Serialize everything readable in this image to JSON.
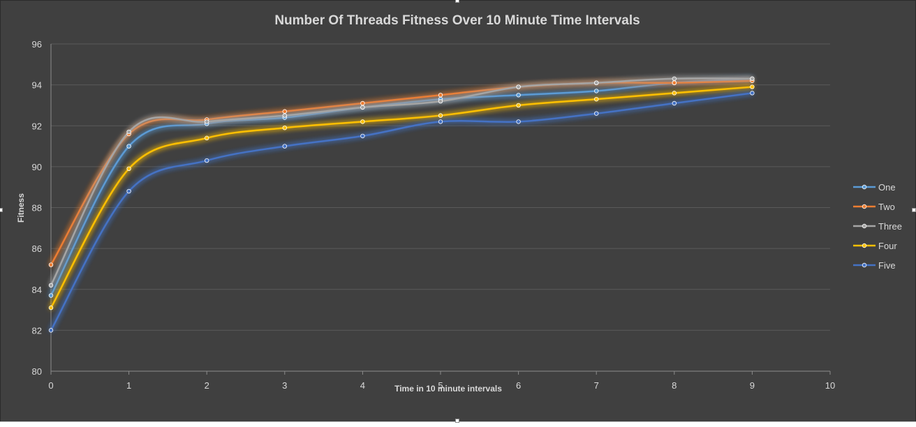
{
  "chart_data": {
    "type": "line",
    "title": "Number Of Threads Fitness Over 10 Minute Time Intervals",
    "xlabel": "Time in 10 minute intervals",
    "ylabel": "Fitness",
    "xlim": [
      0,
      10
    ],
    "ylim": [
      80,
      96
    ],
    "xticks": [
      0,
      1,
      2,
      3,
      4,
      5,
      6,
      7,
      8,
      9,
      10
    ],
    "yticks": [
      80,
      82,
      84,
      86,
      88,
      90,
      92,
      94,
      96
    ],
    "grid": true,
    "legend_position": "right",
    "x": [
      0,
      1,
      2,
      3,
      4,
      5,
      6,
      7,
      8,
      9
    ],
    "series": [
      {
        "name": "One",
        "color": "#5b9bd5",
        "values": [
          83.7,
          91.0,
          92.1,
          92.4,
          92.9,
          93.3,
          93.5,
          93.7,
          94.1,
          94.3
        ]
      },
      {
        "name": "Two",
        "color": "#ed7d31",
        "values": [
          85.2,
          91.6,
          92.3,
          92.7,
          93.1,
          93.5,
          93.9,
          94.1,
          94.1,
          94.2
        ]
      },
      {
        "name": "Three",
        "color": "#a5a5a5",
        "values": [
          84.2,
          91.7,
          92.2,
          92.5,
          92.9,
          93.2,
          93.9,
          94.1,
          94.3,
          94.3
        ]
      },
      {
        "name": "Four",
        "color": "#ffc000",
        "values": [
          83.1,
          89.9,
          91.4,
          91.9,
          92.2,
          92.5,
          93.0,
          93.3,
          93.6,
          93.9
        ]
      },
      {
        "name": "Five",
        "color": "#4472c4",
        "values": [
          82.0,
          88.8,
          90.3,
          91.0,
          91.5,
          92.2,
          92.2,
          92.6,
          93.1,
          93.6
        ]
      }
    ]
  }
}
